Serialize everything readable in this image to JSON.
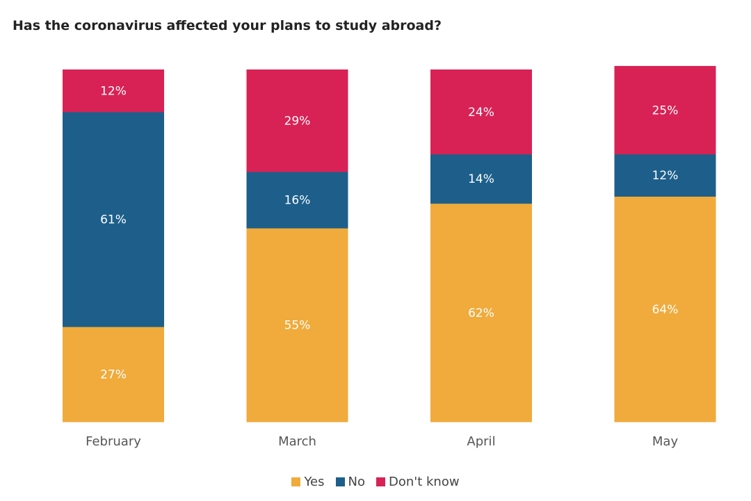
{
  "chart_data": {
    "type": "bar",
    "stacked": true,
    "percent": true,
    "title": "Has the coronavirus affected your plans to study abroad?",
    "categories": [
      "February",
      "March",
      "April",
      "May"
    ],
    "series": [
      {
        "name": "Yes",
        "color": "#f0ab3c",
        "values": [
          27,
          55,
          62,
          64
        ],
        "labels": [
          "27%",
          "55%",
          "62%",
          "64%"
        ]
      },
      {
        "name": "No",
        "color": "#1d5f8a",
        "values": [
          61,
          16,
          14,
          12
        ],
        "labels": [
          "61%",
          "16%",
          "14%",
          "12%"
        ]
      },
      {
        "name": "Don't know",
        "color": "#d82255",
        "values": [
          12,
          29,
          24,
          25
        ],
        "labels": [
          "12%",
          "29%",
          "24%",
          "25%"
        ]
      }
    ],
    "ylim": [
      0,
      100
    ],
    "grid": false,
    "legend_position": "bottom-center"
  }
}
